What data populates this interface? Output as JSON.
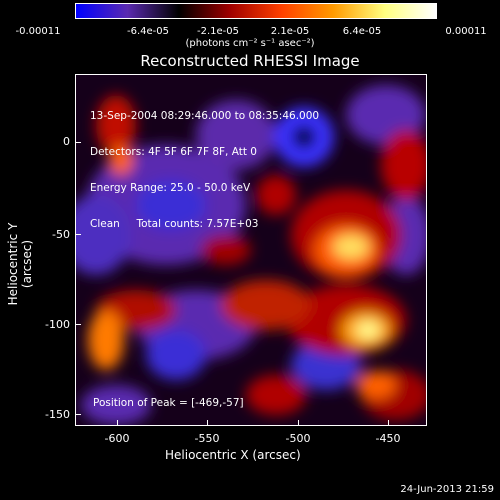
{
  "colorbar": {
    "tick_labels": [
      "-0.00011",
      "-6.4e-05",
      "-2.1e-05",
      "2.1e-05",
      "6.4e-05",
      "0.00011"
    ],
    "units": "(photons cm⁻² s⁻¹ asec⁻²)",
    "colors": [
      "#0000ff",
      "#5a2ab0",
      "#000000",
      "#a00000",
      "#ff4000",
      "#ff9a00",
      "#ffff80",
      "#ffffff"
    ]
  },
  "title": "Reconstructed RHESSI Image",
  "annotation": {
    "line1": "13-Sep-2004 08:29:46.000 to 08:35:46.000",
    "line2": "Detectors: 4F 5F 6F 7F 8F, Att 0",
    "line3": "Energy Range: 25.0 - 50.0 keV",
    "line4": "Clean     Total counts: 7.57E+03"
  },
  "peak_label": "Position of Peak = [-469,-57]",
  "axes": {
    "xlabel": "Heliocentric X (arcsec)",
    "ylabel": "Heliocentric Y (arcsec)",
    "x_ticks": [
      "-600",
      "-550",
      "-500",
      "-450"
    ],
    "y_ticks": [
      "0",
      "-50",
      "-100",
      "-150"
    ]
  },
  "timestamp": "24-Jun-2013 21:59"
}
